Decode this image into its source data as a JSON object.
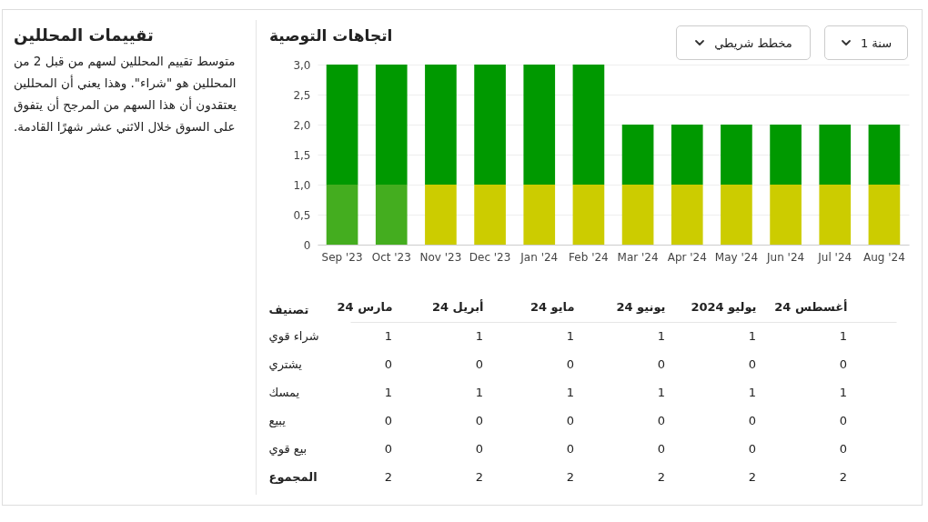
{
  "chart_data": [
    {
      "type": "other",
      "title": "تقييمات المحللين",
      "annotations": [
        "متوسط تقييم المحللين لسهم من قبل 2 من المحللين هو \"شراء\". وهذا يعني أن المحللين يعتقدون أن هذا السهم من المرجح أن يتفوق على السوق خلال الاثني عشر شهرًا القادمة."
      ]
    },
    {
      "type": "bar",
      "title": "اتجاهات التوصية",
      "stacked": true,
      "grid": "y",
      "categories": [
        "Sep '23",
        "Oct '23",
        "Nov '23",
        "Dec '23",
        "Jan '24",
        "Feb '24",
        "Mar '24",
        "Apr '24",
        "May '24",
        "Jun '24",
        "Jul '24",
        "Aug '24"
      ],
      "series": [
        {
          "color": "#cccc00",
          "values": [
            0,
            0,
            1,
            1,
            1,
            1,
            1,
            1,
            1,
            1,
            1,
            1
          ]
        },
        {
          "color": "#44ad1f",
          "values": [
            1,
            1,
            0,
            0,
            0,
            0,
            0,
            0,
            0,
            0,
            0,
            0
          ]
        },
        {
          "color": "#009900",
          "values": [
            2,
            2,
            2,
            2,
            2,
            2,
            1,
            1,
            1,
            1,
            1,
            1
          ]
        }
      ],
      "ylim": [
        0,
        3
      ],
      "yticks": [
        0,
        {
          "value": 0.5,
          "label": "0,5"
        },
        {
          "value": 1,
          "label": "1,0"
        },
        {
          "value": 1.5,
          "label": "1,5"
        },
        {
          "value": 2,
          "label": "2,0"
        },
        {
          "value": 2.5,
          "label": "2,5"
        },
        {
          "value": 3,
          "label": "3,0"
        }
      ],
      "annotations": [
        "مخطط شريطي",
        "سنة 1"
      ]
    },
    {
      "type": "heatmap",
      "ylabel": "تصنيف",
      "data_labels": true,
      "categories": [
        "مارس 24",
        "أبريل 24",
        "مايو 24",
        "يونيو 24",
        "يوليو 2024",
        "أغسطس 24"
      ],
      "y_categories": [
        "شراء قوي",
        "يشتري",
        "يمسك",
        "يبيع",
        "بيع قوي",
        "المجموع"
      ],
      "cells": [
        [
          1,
          1,
          1,
          1,
          1,
          1
        ],
        [
          0,
          0,
          0,
          0,
          0,
          0
        ],
        [
          1,
          1,
          1,
          1,
          1,
          1
        ],
        [
          0,
          0,
          0,
          0,
          0,
          0
        ],
        [
          0,
          0,
          0,
          0,
          0,
          0
        ],
        [
          2,
          2,
          2,
          2,
          2,
          2
        ]
      ]
    }
  ]
}
